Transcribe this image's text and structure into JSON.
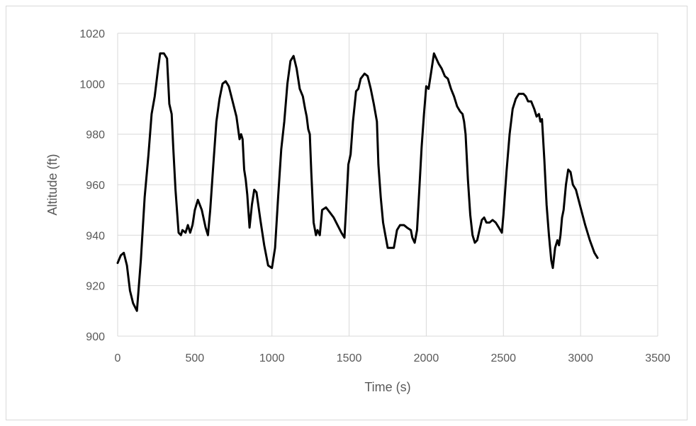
{
  "chart_data": {
    "type": "line",
    "title": "",
    "xlabel": "Time (s)",
    "ylabel": "Altitude (ft)",
    "xlim": [
      0,
      3500
    ],
    "ylim": [
      900,
      1020
    ],
    "x_ticks": [
      0,
      500,
      1000,
      1500,
      2000,
      2500,
      3000,
      3500
    ],
    "y_ticks": [
      900,
      920,
      940,
      960,
      980,
      1000,
      1020
    ],
    "grid": true,
    "legend": "none",
    "series": [
      {
        "color": "#000000",
        "points": [
          [
            0,
            929
          ],
          [
            20,
            932
          ],
          [
            40,
            933
          ],
          [
            60,
            928
          ],
          [
            80,
            918
          ],
          [
            100,
            913
          ],
          [
            125,
            910
          ],
          [
            150,
            930
          ],
          [
            175,
            955
          ],
          [
            200,
            972
          ],
          [
            220,
            988
          ],
          [
            240,
            995
          ],
          [
            260,
            1005
          ],
          [
            275,
            1012
          ],
          [
            300,
            1012
          ],
          [
            320,
            1010
          ],
          [
            335,
            992
          ],
          [
            350,
            988
          ],
          [
            360,
            975
          ],
          [
            375,
            958
          ],
          [
            395,
            941
          ],
          [
            410,
            940
          ],
          [
            420,
            942
          ],
          [
            440,
            941
          ],
          [
            455,
            944
          ],
          [
            470,
            941
          ],
          [
            485,
            944
          ],
          [
            500,
            950
          ],
          [
            520,
            954
          ],
          [
            545,
            950
          ],
          [
            570,
            943
          ],
          [
            585,
            940
          ],
          [
            600,
            950
          ],
          [
            620,
            968
          ],
          [
            640,
            985
          ],
          [
            660,
            994
          ],
          [
            680,
            1000
          ],
          [
            700,
            1001
          ],
          [
            720,
            999
          ],
          [
            745,
            993
          ],
          [
            770,
            987
          ],
          [
            790,
            978
          ],
          [
            800,
            980
          ],
          [
            810,
            978
          ],
          [
            820,
            966
          ],
          [
            830,
            962
          ],
          [
            840,
            956
          ],
          [
            855,
            943
          ],
          [
            870,
            952
          ],
          [
            885,
            958
          ],
          [
            900,
            957
          ],
          [
            925,
            946
          ],
          [
            950,
            936
          ],
          [
            975,
            928
          ],
          [
            1000,
            927
          ],
          [
            1020,
            935
          ],
          [
            1040,
            955
          ],
          [
            1060,
            974
          ],
          [
            1080,
            985
          ],
          [
            1100,
            1000
          ],
          [
            1120,
            1009
          ],
          [
            1140,
            1011
          ],
          [
            1160,
            1006
          ],
          [
            1180,
            998
          ],
          [
            1200,
            995
          ],
          [
            1215,
            990
          ],
          [
            1225,
            987
          ],
          [
            1235,
            982
          ],
          [
            1245,
            980
          ],
          [
            1255,
            965
          ],
          [
            1270,
            945
          ],
          [
            1285,
            940
          ],
          [
            1295,
            942
          ],
          [
            1310,
            940
          ],
          [
            1325,
            950
          ],
          [
            1350,
            951
          ],
          [
            1375,
            949
          ],
          [
            1400,
            947
          ],
          [
            1425,
            944
          ],
          [
            1450,
            941
          ],
          [
            1470,
            939
          ],
          [
            1480,
            950
          ],
          [
            1495,
            968
          ],
          [
            1510,
            972
          ],
          [
            1525,
            985
          ],
          [
            1545,
            997
          ],
          [
            1560,
            998
          ],
          [
            1575,
            1002
          ],
          [
            1600,
            1004
          ],
          [
            1620,
            1003
          ],
          [
            1640,
            998
          ],
          [
            1660,
            992
          ],
          [
            1680,
            985
          ],
          [
            1690,
            968
          ],
          [
            1705,
            955
          ],
          [
            1720,
            945
          ],
          [
            1735,
            940
          ],
          [
            1750,
            935
          ],
          [
            1790,
            935
          ],
          [
            1810,
            942
          ],
          [
            1830,
            944
          ],
          [
            1855,
            944
          ],
          [
            1875,
            943
          ],
          [
            1900,
            942
          ],
          [
            1910,
            939
          ],
          [
            1925,
            937
          ],
          [
            1940,
            942
          ],
          [
            1955,
            958
          ],
          [
            1970,
            975
          ],
          [
            1985,
            988
          ],
          [
            2000,
            999
          ],
          [
            2015,
            998
          ],
          [
            2030,
            1004
          ],
          [
            2050,
            1012
          ],
          [
            2065,
            1010
          ],
          [
            2080,
            1008
          ],
          [
            2100,
            1006
          ],
          [
            2120,
            1003
          ],
          [
            2140,
            1002
          ],
          [
            2160,
            998
          ],
          [
            2180,
            995
          ],
          [
            2200,
            991
          ],
          [
            2220,
            989
          ],
          [
            2235,
            988
          ],
          [
            2245,
            985
          ],
          [
            2255,
            980
          ],
          [
            2270,
            962
          ],
          [
            2285,
            948
          ],
          [
            2300,
            940
          ],
          [
            2315,
            937
          ],
          [
            2330,
            938
          ],
          [
            2345,
            942
          ],
          [
            2360,
            946
          ],
          [
            2375,
            947
          ],
          [
            2390,
            945
          ],
          [
            2410,
            945
          ],
          [
            2430,
            946
          ],
          [
            2450,
            945
          ],
          [
            2470,
            943
          ],
          [
            2490,
            941
          ],
          [
            2500,
            948
          ],
          [
            2520,
            965
          ],
          [
            2540,
            980
          ],
          [
            2560,
            990
          ],
          [
            2580,
            994
          ],
          [
            2600,
            996
          ],
          [
            2630,
            996
          ],
          [
            2645,
            995
          ],
          [
            2660,
            993
          ],
          [
            2680,
            993
          ],
          [
            2700,
            990
          ],
          [
            2715,
            987
          ],
          [
            2730,
            988
          ],
          [
            2740,
            985
          ],
          [
            2750,
            986
          ],
          [
            2765,
            970
          ],
          [
            2780,
            952
          ],
          [
            2795,
            940
          ],
          [
            2810,
            930
          ],
          [
            2820,
            927
          ],
          [
            2835,
            935
          ],
          [
            2850,
            938
          ],
          [
            2860,
            936
          ],
          [
            2870,
            940
          ],
          [
            2880,
            947
          ],
          [
            2890,
            950
          ],
          [
            2905,
            960
          ],
          [
            2920,
            966
          ],
          [
            2935,
            965
          ],
          [
            2950,
            960
          ],
          [
            2970,
            958
          ],
          [
            3000,
            951
          ],
          [
            3030,
            944
          ],
          [
            3060,
            938
          ],
          [
            3090,
            933
          ],
          [
            3110,
            931
          ]
        ]
      }
    ]
  }
}
